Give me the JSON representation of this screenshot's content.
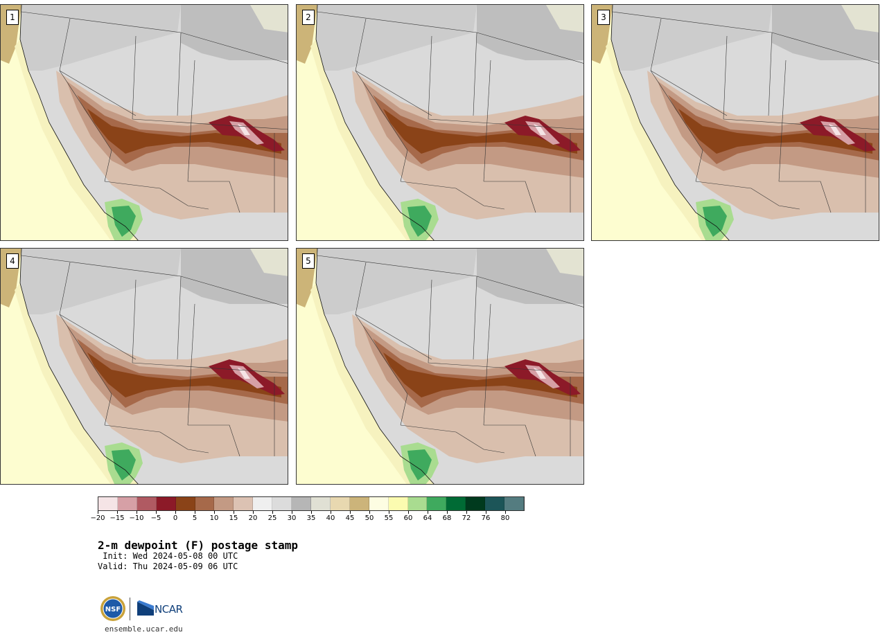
{
  "panels": [
    {
      "label": "1"
    },
    {
      "label": "2"
    },
    {
      "label": "3"
    },
    {
      "label": "4"
    },
    {
      "label": "5"
    }
  ],
  "colorbar": {
    "tick_labels": [
      "−20",
      "−15",
      "−10",
      "−5",
      "0",
      "5",
      "10",
      "15",
      "20",
      "25",
      "30",
      "35",
      "40",
      "45",
      "50",
      "55",
      "60",
      "64",
      "68",
      "72",
      "76",
      "80"
    ],
    "colors": [
      "#f5e4e6",
      "#d6a0a6",
      "#b05a62",
      "#8c1a28",
      "#8a4318",
      "#a6694a",
      "#c39a84",
      "#dcc2b3",
      "#efefef",
      "#dcdcdc",
      "#b6b6b6",
      "#e0e0d4",
      "#e8d8b0",
      "#ccb47a",
      "#fdfde2",
      "#fbfbb0",
      "#a9dc90",
      "#3faa5e",
      "#006b35",
      "#003a1e",
      "#1c5558",
      "#547c80"
    ]
  },
  "text": {
    "title": "2-m dewpoint (F) postage stamp",
    "init": " Init: Wed 2024-05-08 00 UTC",
    "valid": "Valid: Thu 2024-05-09 06 UTC",
    "site": "ensemble.ucar.edu",
    "nsf_logo": "NSF",
    "ncar_logo": "NCAR"
  }
}
